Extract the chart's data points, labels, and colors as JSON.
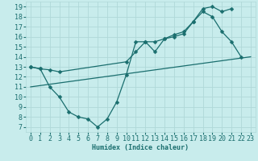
{
  "xlabel": "Humidex (Indice chaleur)",
  "xlim": [
    -0.5,
    23.5
  ],
  "ylim": [
    6.5,
    19.5
  ],
  "xticks": [
    0,
    1,
    2,
    3,
    4,
    5,
    6,
    7,
    8,
    9,
    10,
    11,
    12,
    13,
    14,
    15,
    16,
    17,
    18,
    19,
    20,
    21,
    22,
    23
  ],
  "yticks": [
    7,
    8,
    9,
    10,
    11,
    12,
    13,
    14,
    15,
    16,
    17,
    18,
    19
  ],
  "bg_color": "#c8ecec",
  "grid_color": "#b0d8d8",
  "line_color": "#1a6e6e",
  "l1x": [
    0,
    1,
    2,
    3,
    4,
    5,
    6,
    7,
    8,
    9,
    10,
    11,
    12,
    13,
    14,
    15,
    16,
    17,
    18,
    19,
    20,
    21,
    22
  ],
  "l1y": [
    13.0,
    12.8,
    11.0,
    10.0,
    8.5,
    8.0,
    7.8,
    7.0,
    7.8,
    9.5,
    12.2,
    15.5,
    15.5,
    14.5,
    15.8,
    16.0,
    16.3,
    17.5,
    18.5,
    18.0,
    16.5,
    15.5,
    14.0
  ],
  "l2x": [
    0,
    1,
    2,
    3,
    10,
    11,
    12,
    13,
    14,
    15,
    16,
    17,
    18,
    19,
    20,
    21
  ],
  "l2y": [
    13.0,
    12.8,
    12.7,
    12.5,
    13.5,
    14.5,
    15.5,
    15.5,
    15.8,
    16.2,
    16.5,
    17.5,
    18.8,
    19.0,
    18.5,
    18.8
  ],
  "l3x": [
    0,
    23
  ],
  "l3y": [
    11.0,
    14.0
  ],
  "font_size": 6,
  "marker_size": 2.5,
  "lw": 0.9
}
